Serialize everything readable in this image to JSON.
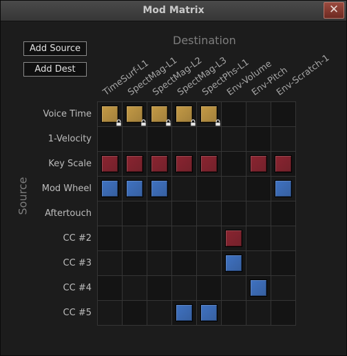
{
  "window": {
    "title": "Mod Matrix",
    "close_glyph": "✕"
  },
  "buttons": {
    "add_source": "Add Source",
    "add_dest": "Add Dest"
  },
  "headings": {
    "destination": "Destination",
    "source": "Source"
  },
  "destinations": [
    "TimeSurf-L1",
    "SpectMag-L1",
    "SpectMag-L2",
    "SpectMag-L3",
    "SpectPhs-L1",
    "Env-Volume",
    "Env-Pitch",
    "Env-Scratch-1"
  ],
  "sources": [
    "Voice Time",
    "1-Velocity",
    "Key Scale",
    "Mod Wheel",
    "Aftertouch",
    "CC #2",
    "CC #3",
    "CC #4",
    "CC #5"
  ],
  "colors": {
    "gold": "#c49a45",
    "red": "#8a2430",
    "blue": "#3f72c2"
  },
  "matrix": [
    [
      "gold-lock",
      "gold-lock",
      "gold-lock",
      "gold-lock",
      "gold-lock",
      "",
      "",
      ""
    ],
    [
      "",
      "",
      "",
      "",
      "",
      "",
      "",
      ""
    ],
    [
      "red",
      "red",
      "red",
      "red",
      "red",
      "",
      "red",
      "red"
    ],
    [
      "blue",
      "blue",
      "blue",
      "",
      "",
      "",
      "",
      "blue"
    ],
    [
      "",
      "",
      "",
      "",
      "",
      "",
      "",
      ""
    ],
    [
      "",
      "",
      "",
      "",
      "",
      "red",
      "",
      ""
    ],
    [
      "",
      "",
      "",
      "",
      "",
      "blue",
      "",
      ""
    ],
    [
      "",
      "",
      "",
      "",
      "",
      "",
      "blue",
      ""
    ],
    [
      "",
      "",
      "",
      "blue",
      "blue",
      "",
      "",
      ""
    ]
  ]
}
